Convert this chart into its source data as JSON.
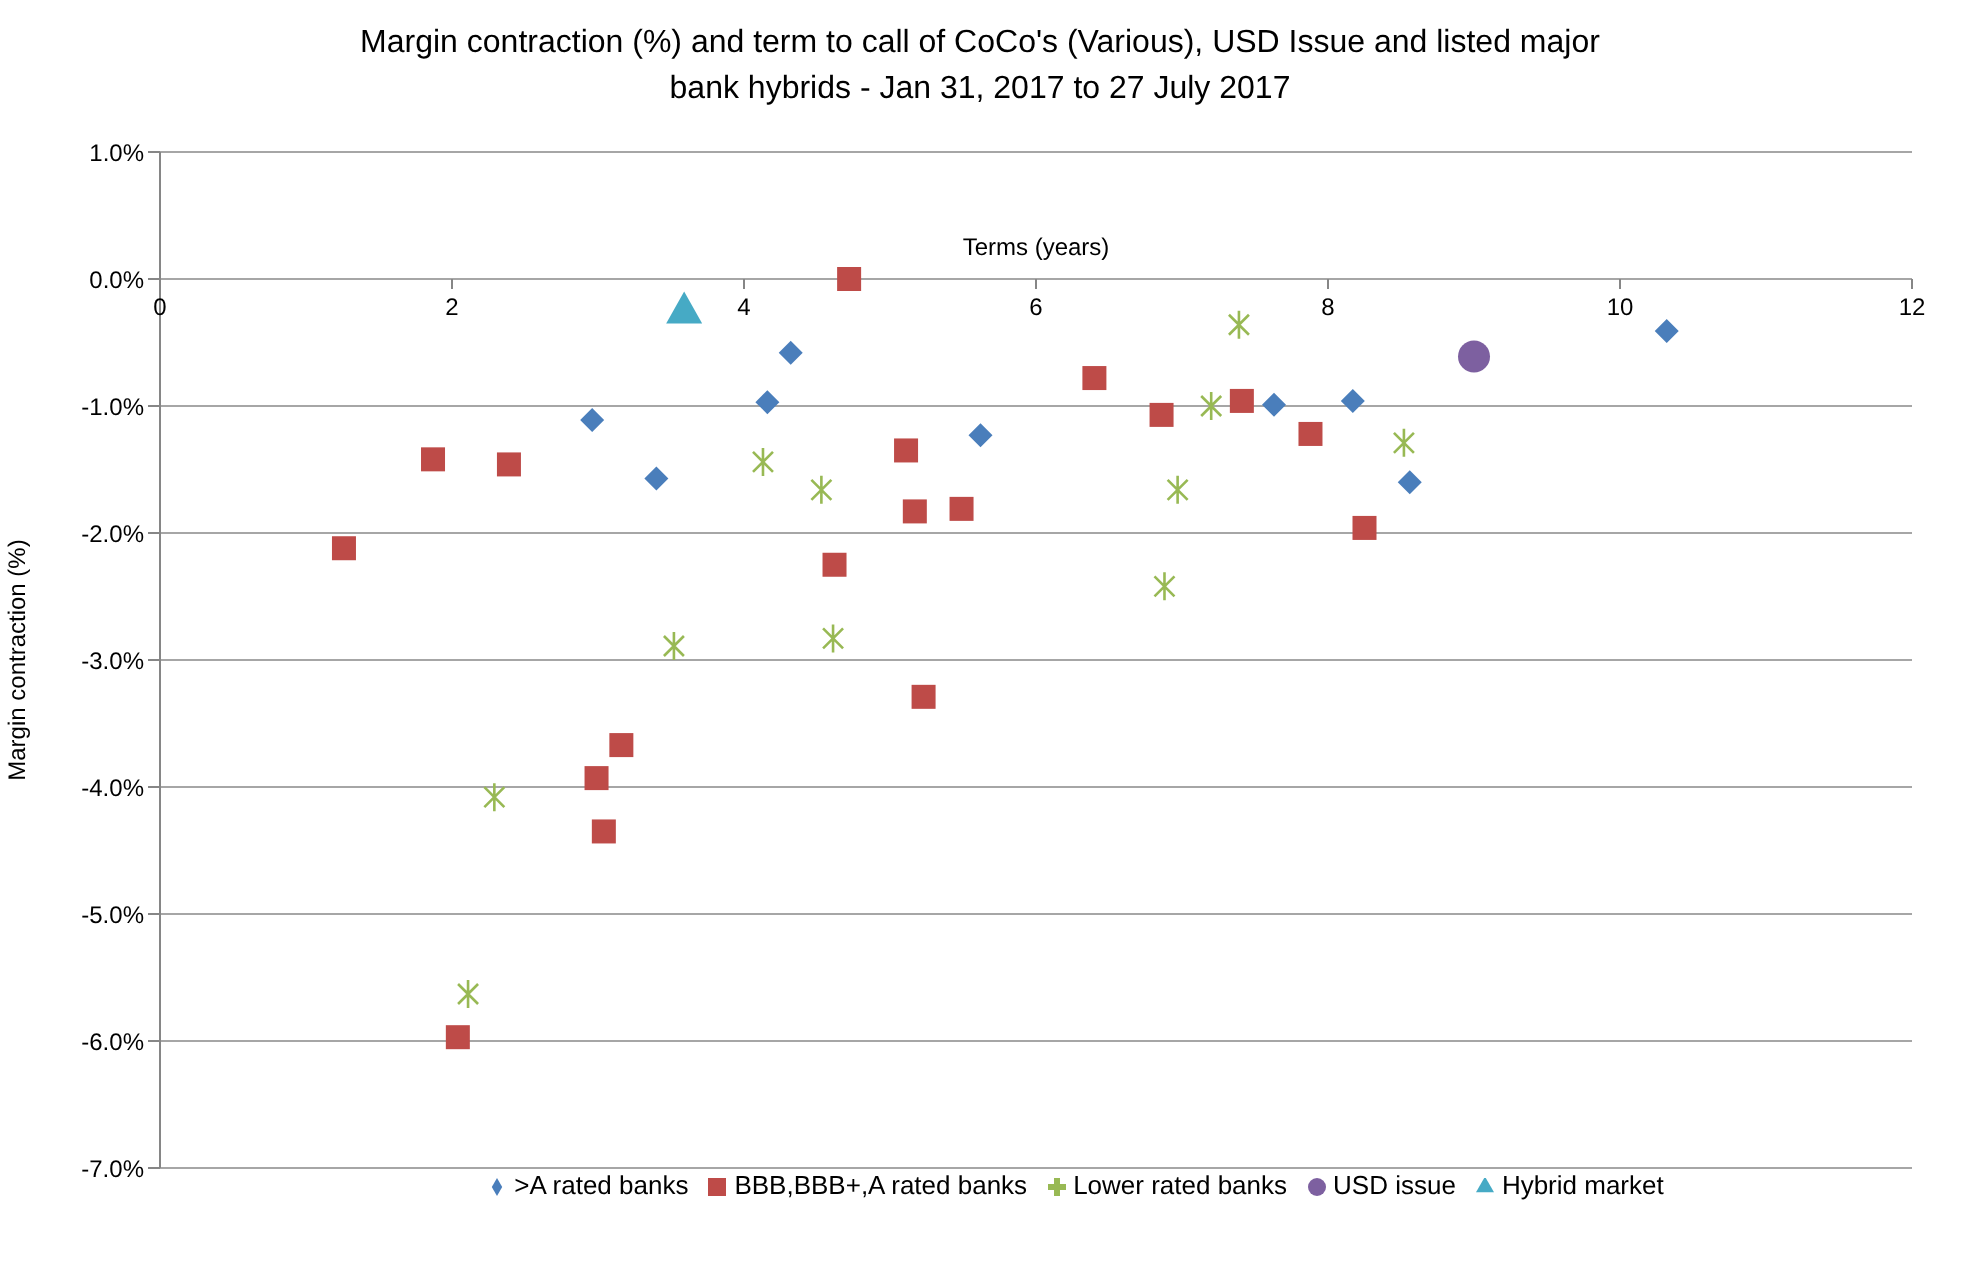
{
  "chart_data": {
    "type": "scatter",
    "title": "Margin contraction (%) and term to call of CoCo's (Various), USD Issue and listed major bank hybrids - Jan 31, 2017 to 27 July 2017",
    "xlabel": "Terms (years)",
    "ylabel": "Margin contraction (%)",
    "xlim": [
      0,
      12
    ],
    "xticks": [
      0,
      2,
      4,
      6,
      8,
      10,
      12
    ],
    "ylim": [
      -7,
      1
    ],
    "yticks": [
      {
        "value": 1,
        "label": "1.0%"
      },
      {
        "value": 0,
        "label": "0.0%"
      },
      {
        "value": -1,
        "label": "-1.0%"
      },
      {
        "value": -2,
        "label": "-2.0%"
      },
      {
        "value": -3,
        "label": "-3.0%"
      },
      {
        "value": -4,
        "label": "-4.0%"
      },
      {
        "value": -5,
        "label": "-5.0%"
      },
      {
        "value": -6,
        "label": "-6.0%"
      },
      {
        "value": -7,
        "label": "-7.0%"
      }
    ],
    "grid": "y",
    "legend": "bottom",
    "series": [
      {
        "name": ">A rated banks",
        "color": "#4a7ebb",
        "marker": "diamond",
        "x": [
          2.96,
          3.4,
          4.16,
          4.32,
          5.62,
          7.63,
          8.17,
          8.56,
          10.32
        ],
        "values": [
          -1.11,
          -1.57,
          -0.97,
          -0.58,
          -1.23,
          -0.99,
          -0.96,
          -1.6,
          -0.41
        ]
      },
      {
        "name": "BBB,BBB+,A rated banks",
        "color": "#be4b48",
        "marker": "square",
        "x": [
          1.26,
          1.87,
          2.39,
          3.16,
          2.99,
          3.04,
          2.04,
          4.72,
          5.11,
          5.17,
          5.49,
          4.62,
          5.23,
          6.4,
          6.86,
          7.41,
          7.88,
          8.25
        ],
        "values": [
          -2.12,
          -1.42,
          -1.46,
          -3.67,
          -3.93,
          -4.35,
          -5.97,
          0.0,
          -1.35,
          -1.83,
          -1.81,
          -2.25,
          -3.29,
          -0.78,
          -1.07,
          -0.96,
          -1.22,
          -1.96
        ]
      },
      {
        "name": "Lower rated banks",
        "color": "#98b954",
        "marker": "cross",
        "x": [
          2.29,
          2.11,
          3.52,
          4.13,
          4.53,
          4.61,
          7.39,
          7.2,
          6.97,
          6.88,
          8.52
        ],
        "values": [
          -4.08,
          -5.63,
          -2.89,
          -1.44,
          -1.66,
          -2.83,
          -0.36,
          -1.0,
          -1.66,
          -2.42,
          -1.29
        ]
      },
      {
        "name": "USD issue",
        "color": "#7d60a0",
        "marker": "circle",
        "x": [
          9.0
        ],
        "values": [
          -0.61
        ]
      },
      {
        "name": "Hybrid market",
        "color": "#46aac5",
        "marker": "triangle",
        "x": [
          3.59
        ],
        "values": [
          -0.24
        ]
      }
    ]
  }
}
